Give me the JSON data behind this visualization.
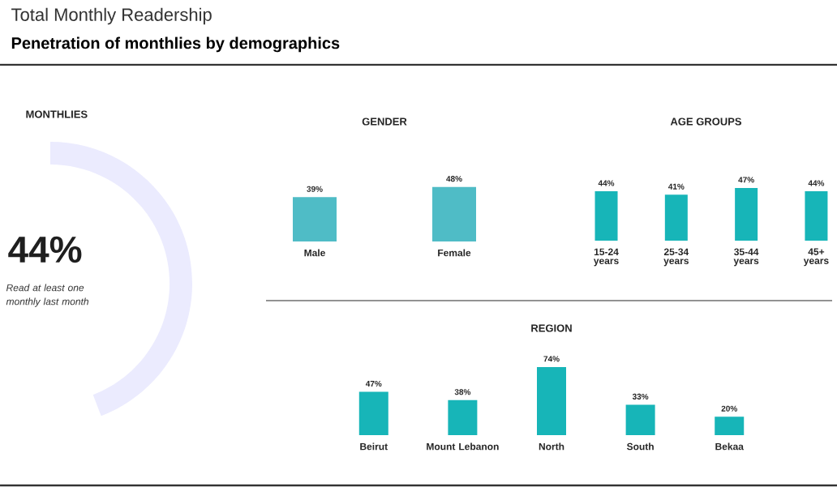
{
  "chart_data": [
    {
      "type": "other",
      "title": "Total Monthly Readership",
      "subtitle": "Penetration of monthlies by demographics"
    },
    {
      "type": "other",
      "title": "MONTHLIES",
      "annotations": [
        "44%",
        "Read at least one monthly last month"
      ]
    },
    {
      "type": "bar",
      "title": "GENDER",
      "categories": [
        "Male",
        "Female"
      ],
      "values": [
        39,
        48
      ],
      "value_labels": [
        "39%",
        "48%"
      ],
      "color": "#4fbcc6"
    },
    {
      "type": "bar",
      "title": "AGE GROUPS",
      "categories": [
        "15-24 years",
        "25-34 years",
        "35-44 years",
        "45+ years"
      ],
      "values": [
        44,
        41,
        47,
        44
      ],
      "value_labels": [
        "44%",
        "41%",
        "47%",
        "44%"
      ],
      "color": "#17b5b8"
    },
    {
      "type": "bar",
      "title": "REGION",
      "categories": [
        "Beirut",
        "Mount Lebanon",
        "North",
        "South",
        "Bekaa"
      ],
      "values": [
        47,
        38,
        74,
        33,
        20
      ],
      "value_labels": [
        "47%",
        "38%",
        "74%",
        "33%",
        "20%"
      ],
      "color": "#17b5b8"
    }
  ]
}
